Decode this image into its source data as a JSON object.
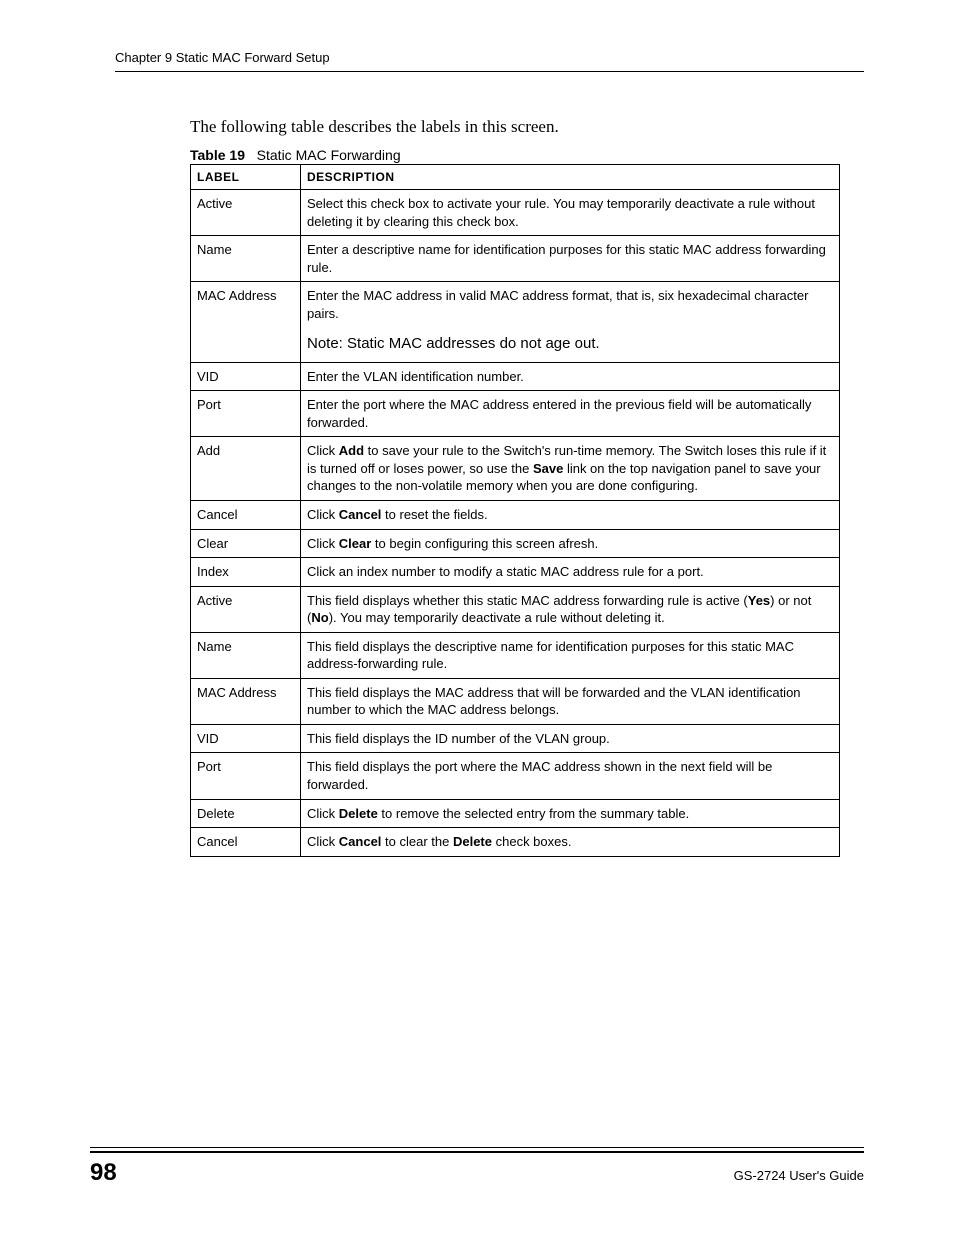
{
  "header": {
    "chapter": "Chapter 9 Static MAC Forward Setup"
  },
  "intro": "The following table describes the labels in this screen.",
  "caption": {
    "prefix": "Table 19",
    "title": "Static MAC Forwarding"
  },
  "columns": {
    "label": "LABEL",
    "description": "DESCRIPTION"
  },
  "rows": [
    {
      "label": "Active",
      "segments": [
        {
          "t": "Select this check box to activate your rule. You may temporarily deactivate a rule without deleting it by clearing this check box."
        }
      ]
    },
    {
      "label": "Name",
      "segments": [
        {
          "t": "Enter a descriptive name for identification purposes for this static MAC address forwarding rule."
        }
      ]
    },
    {
      "label": "MAC Address",
      "segments": [
        {
          "t": "Enter the MAC address in valid MAC address format, that is, six hexadecimal character pairs."
        }
      ],
      "note": "Note: Static MAC addresses do not age out."
    },
    {
      "label": "VID",
      "segments": [
        {
          "t": "Enter the VLAN identification number."
        }
      ]
    },
    {
      "label": "Port",
      "segments": [
        {
          "t": "Enter the port where the MAC address entered in the previous field will be automatically forwarded."
        }
      ]
    },
    {
      "label": "Add",
      "segments": [
        {
          "t": "Click "
        },
        {
          "t": "Add",
          "b": true
        },
        {
          "t": " to save your rule to the Switch's run-time memory. The Switch loses this rule if it is turned off or loses power, so use the "
        },
        {
          "t": "Save",
          "b": true
        },
        {
          "t": " link on the top navigation panel to save your changes to the non-volatile memory when you are done configuring."
        }
      ]
    },
    {
      "label": "Cancel",
      "segments": [
        {
          "t": "Click "
        },
        {
          "t": "Cancel",
          "b": true
        },
        {
          "t": " to reset the fields."
        }
      ]
    },
    {
      "label": "Clear",
      "segments": [
        {
          "t": "Click "
        },
        {
          "t": "Clear",
          "b": true
        },
        {
          "t": " to begin configuring this screen afresh."
        }
      ]
    },
    {
      "label": "Index",
      "segments": [
        {
          "t": "Click an index number to modify a static MAC address rule for a port."
        }
      ]
    },
    {
      "label": "Active",
      "segments": [
        {
          "t": "This field displays whether this static MAC address forwarding rule is active ("
        },
        {
          "t": "Yes",
          "b": true
        },
        {
          "t": ") or not ("
        },
        {
          "t": "No",
          "b": true
        },
        {
          "t": "). You may temporarily deactivate a rule without deleting it."
        }
      ]
    },
    {
      "label": "Name",
      "segments": [
        {
          "t": "This field displays the descriptive name for identification purposes for this static MAC address-forwarding rule."
        }
      ]
    },
    {
      "label": "MAC Address",
      "segments": [
        {
          "t": "This field displays the MAC address that will be forwarded and the VLAN identification number to which the MAC address belongs."
        }
      ]
    },
    {
      "label": "VID",
      "segments": [
        {
          "t": "This field displays the ID number of the VLAN group."
        }
      ]
    },
    {
      "label": "Port",
      "segments": [
        {
          "t": "This field displays the port where the MAC address shown in the next field will be forwarded."
        }
      ]
    },
    {
      "label": "Delete",
      "segments": [
        {
          "t": "Click "
        },
        {
          "t": "Delete",
          "b": true
        },
        {
          "t": " to remove the selected entry from the summary table."
        }
      ]
    },
    {
      "label": "Cancel",
      "segments": [
        {
          "t": "Click "
        },
        {
          "t": "Cancel",
          "b": true
        },
        {
          "t": " to clear the "
        },
        {
          "t": "Delete",
          "b": true
        },
        {
          "t": " check boxes."
        }
      ]
    }
  ],
  "footer": {
    "page": "98",
    "guide": "GS-2724 User's Guide"
  }
}
